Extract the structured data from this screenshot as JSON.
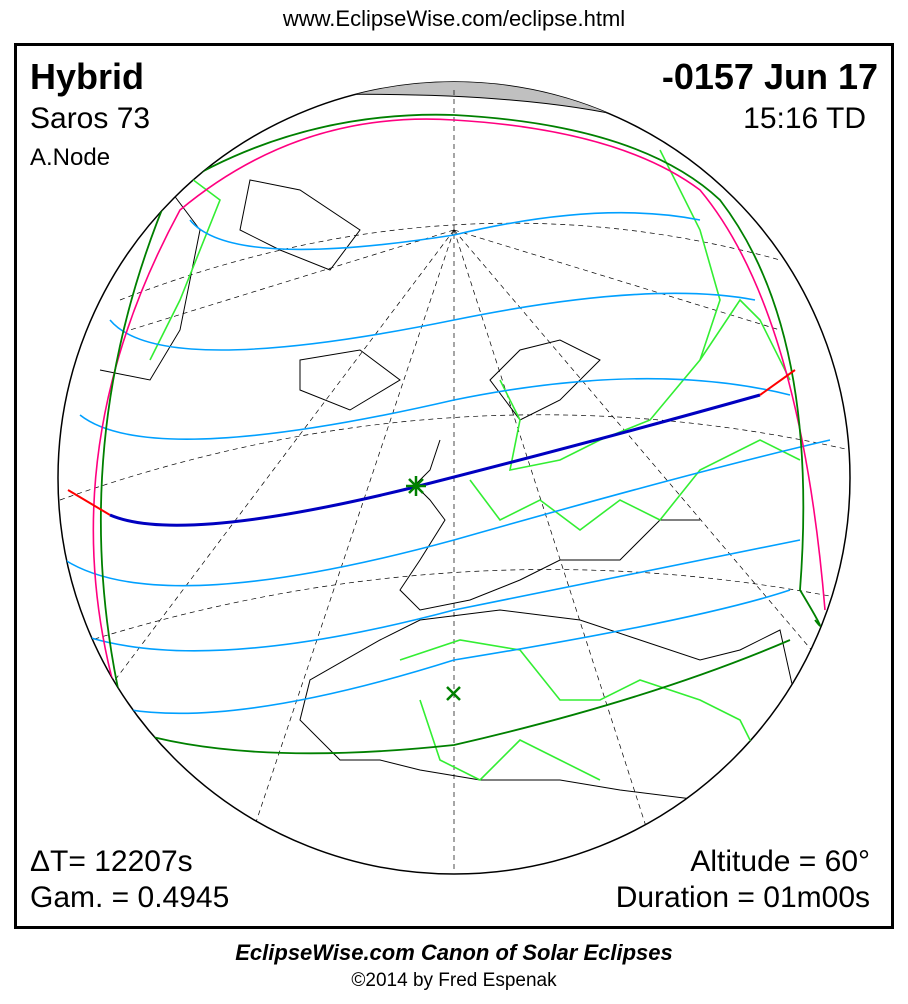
{
  "header": {
    "url": "www.EclipseWise.com/eclipse.html"
  },
  "eclipse": {
    "type": "Hybrid",
    "date": "-0157 Jun 17",
    "saros": "Saros  73",
    "time": "15:16 TD",
    "node": "A.Node",
    "delta_t": "ΔT=  12207s",
    "gamma": "Gam. = 0.4945",
    "altitude": "Altitude = 60°",
    "duration": "Duration = 01m00s"
  },
  "footer": {
    "credit": "EclipseWise.com Canon of Solar Eclipses",
    "copyright": "©2014 by Fred Espenak"
  },
  "colors": {
    "central_path": "#0000c0",
    "partial_limits": "#00a0ff",
    "penumbra_boundary": "#008000",
    "sunrise_sunset": "#ff0080",
    "borders": "#33ee33",
    "annular_ends": "#ff0000",
    "night": "#c0c0c0"
  }
}
